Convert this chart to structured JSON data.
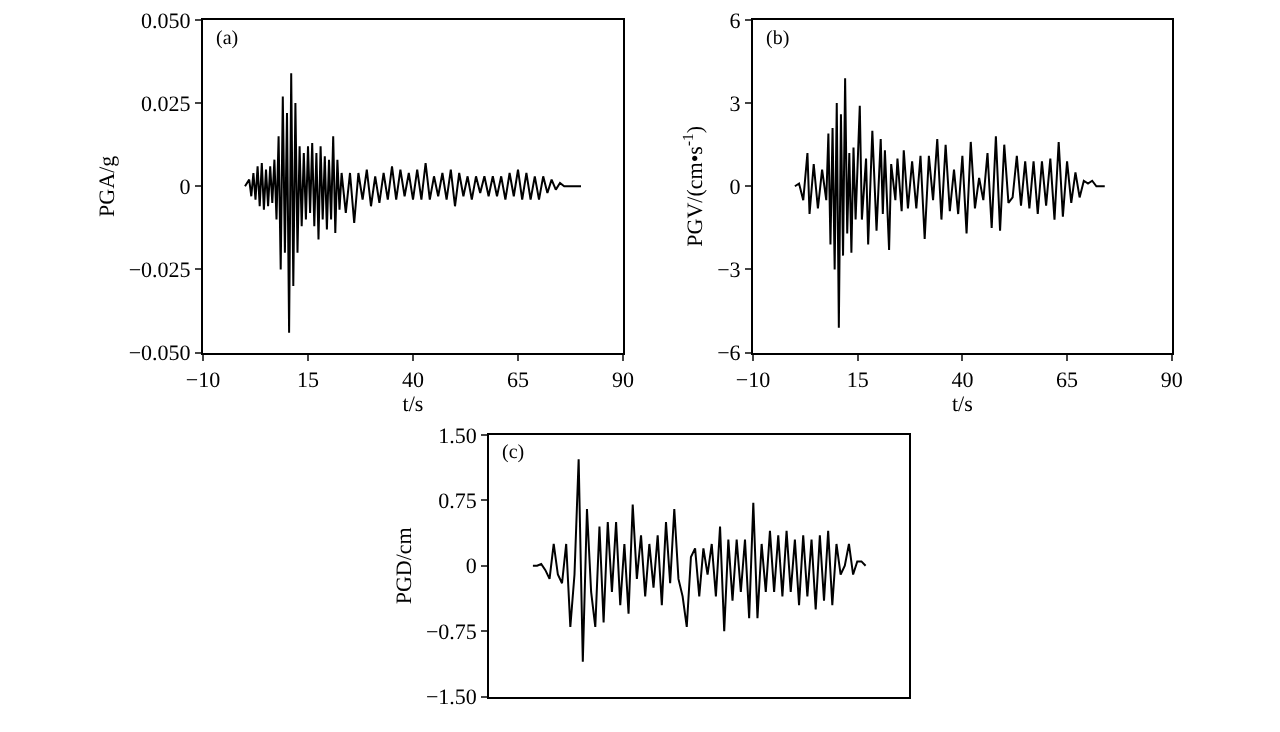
{
  "chart_data": [
    {
      "type": "line",
      "title": "(a)",
      "xlabel": "t/s",
      "ylabel": "PGA/g",
      "color": "#000000",
      "line_style": "solid",
      "marker": "none",
      "x": [
        0,
        1,
        1.5,
        2,
        2.5,
        3,
        3.5,
        4,
        4.5,
        5,
        5.5,
        6,
        6.5,
        7,
        7.5,
        8,
        8.5,
        9,
        9.5,
        10,
        10.5,
        11,
        11.5,
        12,
        12.5,
        13,
        13.5,
        14,
        14.5,
        15,
        15.5,
        16,
        16.5,
        17,
        17.5,
        18,
        18.5,
        19,
        19.5,
        20,
        20.5,
        21,
        21.5,
        22,
        22.5,
        23,
        24,
        25,
        26,
        27,
        28,
        29,
        30,
        31,
        32,
        33,
        34,
        35,
        36,
        37,
        38,
        39,
        40,
        41,
        42,
        43,
        44,
        45,
        46,
        47,
        48,
        49,
        50,
        51,
        52,
        53,
        54,
        55,
        56,
        57,
        58,
        59,
        60,
        61,
        62,
        63,
        64,
        65,
        66,
        67,
        68,
        69,
        70,
        71,
        72,
        73,
        74,
        75,
        76,
        78,
        80
      ],
      "values": [
        0,
        0.002,
        -0.003,
        0.004,
        -0.004,
        0.006,
        -0.006,
        0.007,
        -0.007,
        0.005,
        -0.006,
        0.006,
        -0.005,
        0.008,
        -0.01,
        0.015,
        -0.025,
        0.027,
        -0.02,
        0.022,
        -0.044,
        0.034,
        -0.03,
        0.025,
        -0.02,
        0.012,
        -0.012,
        0.01,
        -0.01,
        0.012,
        -0.008,
        0.013,
        -0.012,
        0.01,
        -0.016,
        0.012,
        -0.01,
        0.009,
        -0.013,
        0.008,
        -0.01,
        0.015,
        -0.014,
        0.008,
        -0.007,
        0.004,
        -0.008,
        0.004,
        -0.011,
        0.004,
        -0.004,
        0.005,
        -0.006,
        0.003,
        -0.005,
        0.004,
        -0.004,
        0.006,
        -0.004,
        0.005,
        -0.003,
        0.004,
        -0.004,
        0.005,
        -0.004,
        0.007,
        -0.004,
        0.003,
        -0.003,
        0.004,
        -0.004,
        0.005,
        -0.006,
        0.004,
        -0.003,
        0.003,
        -0.004,
        0.003,
        -0.002,
        0.003,
        -0.003,
        0.003,
        -0.003,
        0.003,
        -0.004,
        0.004,
        -0.003,
        0.005,
        -0.004,
        0.004,
        -0.004,
        0.003,
        -0.004,
        0.003,
        -0.002,
        0.002,
        -0.001,
        0.001,
        0,
        0,
        0
      ],
      "xlim": [
        -10,
        90
      ],
      "xticks": [
        {
          "value": -10,
          "label": "−10"
        },
        15,
        40,
        65,
        90
      ],
      "ylim": [
        -0.05,
        0.05
      ],
      "yticks": [
        {
          "value": -0.05,
          "label": "−0.050"
        },
        {
          "value": -0.025,
          "label": "−0.025"
        },
        0,
        0.025,
        {
          "value": 0.05,
          "label": "0.050"
        }
      ]
    },
    {
      "type": "line",
      "title": "(b)",
      "xlabel": "t/s",
      "ylabel": "PGV/(cm•s$^{-1}$)",
      "color": "#000000",
      "line_style": "solid",
      "marker": "none",
      "x": [
        0,
        1,
        2,
        3,
        3.5,
        4.5,
        5.5,
        6.5,
        7.5,
        8,
        8.5,
        9,
        9.5,
        10,
        10.5,
        11,
        11.5,
        12,
        12.5,
        13,
        13.5,
        14,
        14.5,
        15.5,
        16,
        17,
        17.5,
        18.5,
        19.5,
        20.5,
        21,
        21.5,
        22.5,
        23,
        24,
        24.5,
        25.5,
        26,
        27,
        28,
        29,
        30,
        31,
        32,
        33,
        34,
        35,
        36,
        37,
        38,
        39,
        40,
        41,
        42,
        43,
        44,
        45,
        46,
        47,
        48,
        49,
        50,
        51,
        52,
        53,
        54,
        55,
        56,
        57,
        58,
        59,
        60,
        61,
        62,
        63,
        64,
        65,
        66,
        67,
        68,
        69,
        70,
        71,
        72,
        74
      ],
      "values": [
        0,
        0.1,
        -0.5,
        1.2,
        -1.0,
        0.8,
        -0.8,
        0.6,
        -0.5,
        1.9,
        -2.1,
        2.1,
        -3.0,
        3.0,
        -5.1,
        2.6,
        -2.5,
        3.9,
        -1.7,
        1.2,
        -2.4,
        1.4,
        -1.2,
        2.9,
        -1.2,
        1.0,
        -2.1,
        2.0,
        -1.6,
        1.7,
        -1.0,
        1.3,
        -2.3,
        0.8,
        -0.5,
        1.0,
        -0.9,
        1.3,
        -0.8,
        0.9,
        -0.8,
        1.1,
        -1.9,
        1.1,
        -0.5,
        1.7,
        -1.2,
        1.5,
        -0.9,
        0.6,
        -1.0,
        1.1,
        -1.7,
        1.6,
        -0.8,
        0.3,
        -0.5,
        1.2,
        -1.5,
        1.8,
        -1.6,
        1.5,
        -0.6,
        -0.4,
        1.1,
        -0.7,
        0.9,
        -0.8,
        0.9,
        -1.0,
        0.9,
        -0.7,
        1.0,
        -1.2,
        1.6,
        -1.1,
        0.9,
        -0.6,
        0.5,
        -0.4,
        0.2,
        0.1,
        0.2,
        0,
        0
      ],
      "xlim": [
        -10,
        90
      ],
      "xticks": [
        {
          "value": -10,
          "label": "−10"
        },
        15,
        40,
        65,
        90
      ],
      "ylim": [
        -6,
        6
      ],
      "yticks": [
        {
          "value": -6,
          "label": "−6"
        },
        {
          "value": -3,
          "label": "−3"
        },
        0,
        3,
        6
      ]
    },
    {
      "type": "line",
      "title": "(c)",
      "ylabel": "PGD/cm",
      "color": "#000000",
      "line_style": "solid",
      "marker": "none",
      "categories": [
        null,
        null,
        null,
        null,
        null,
        null,
        null,
        null,
        null,
        null,
        null,
        null,
        null,
        null,
        null,
        null,
        null,
        null,
        null,
        null,
        null,
        null,
        null,
        null,
        null,
        null,
        null,
        null,
        null,
        null,
        null,
        null,
        null,
        null,
        null,
        null,
        null,
        null,
        null,
        null,
        null,
        null,
        null,
        null,
        null,
        null,
        null,
        null,
        null,
        null,
        null,
        null,
        null,
        null,
        null,
        null,
        null,
        null,
        null,
        null,
        null,
        null,
        null,
        null,
        null,
        null,
        null,
        null,
        null,
        null,
        null,
        null,
        null,
        null,
        null,
        null,
        null,
        null,
        null,
        null,
        null,
        null,
        null,
        null,
        null,
        null,
        null,
        null,
        null,
        null,
        null,
        null,
        null,
        null,
        null,
        null,
        null,
        null,
        null,
        null,
        null
      ],
      "values": [
        null,
        null,
        null,
        null,
        null,
        null,
        null,
        null,
        null,
        null,
        0,
        0,
        0.02,
        -0.05,
        -0.15,
        0.25,
        -0.1,
        -0.2,
        0.25,
        -0.7,
        -0.1,
        1.22,
        -1.1,
        0.65,
        -0.3,
        -0.7,
        0.45,
        -0.65,
        0.5,
        -0.3,
        0.5,
        -0.45,
        0.25,
        -0.55,
        0.7,
        -0.15,
        0.35,
        -0.35,
        0.25,
        -0.25,
        0.35,
        -0.45,
        0.5,
        -0.2,
        0.65,
        -0.15,
        -0.35,
        -0.7,
        0.1,
        0.2,
        -0.35,
        0.2,
        -0.1,
        0.25,
        -0.35,
        0.45,
        -0.75,
        0.3,
        -0.4,
        0.3,
        -0.3,
        0.3,
        -0.6,
        0.72,
        -0.6,
        0.25,
        -0.3,
        0.4,
        -0.3,
        0.35,
        -0.35,
        0.4,
        -0.3,
        0.3,
        -0.45,
        0.35,
        -0.35,
        0.3,
        -0.5,
        0.35,
        -0.4,
        0.4,
        -0.45,
        0.25,
        -0.1,
        0,
        0.25,
        -0.1,
        0.05,
        0.05,
        0,
        null,
        null,
        null,
        null,
        null,
        null,
        null,
        null,
        null,
        null
      ],
      "ylim": [
        -1.5,
        1.5
      ],
      "yticks": [
        {
          "value": -1.5,
          "label": "−1.50"
        },
        {
          "value": -0.75,
          "label": "−0.75"
        },
        0,
        0.75,
        {
          "value": 1.5,
          "label": "1.50"
        }
      ]
    }
  ]
}
